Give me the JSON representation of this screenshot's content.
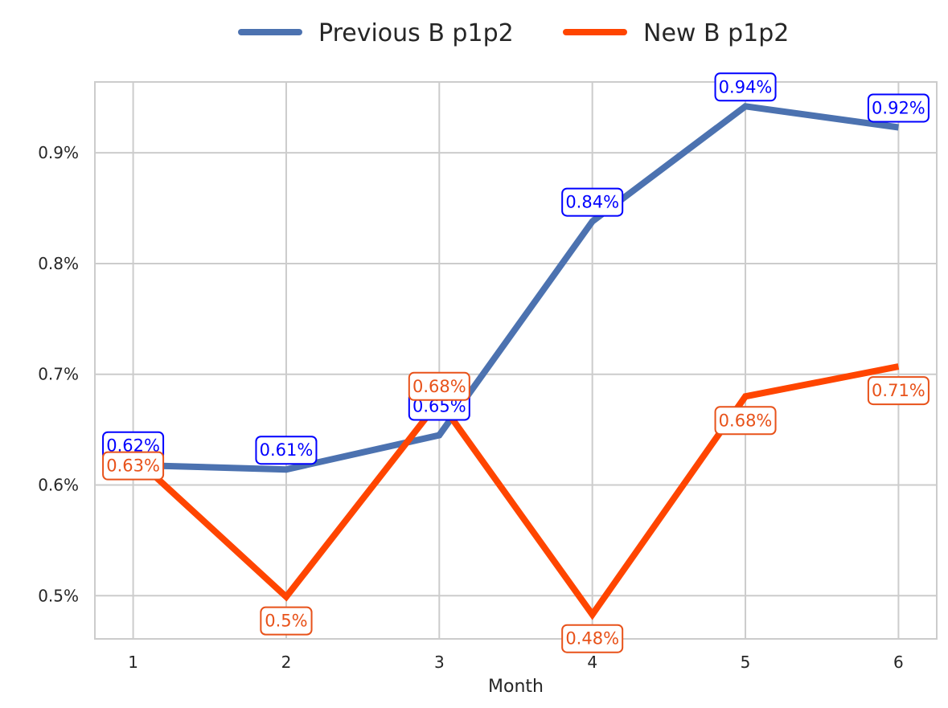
{
  "chart_data": {
    "type": "line",
    "title": "",
    "xlabel": "Month",
    "ylabel": "",
    "x": [
      1,
      2,
      3,
      4,
      5,
      6
    ],
    "x_tick_labels": [
      "1",
      "2",
      "3",
      "4",
      "5",
      "6"
    ],
    "y_tick_values": [
      0.5,
      0.6,
      0.7,
      0.8,
      0.9
    ],
    "y_tick_labels": [
      "0.5%",
      "0.6%",
      "0.7%",
      "0.8%",
      "0.9%"
    ],
    "ylim": [
      0.461,
      0.964
    ],
    "xlim": [
      0.75,
      6.25
    ],
    "grid": true,
    "legend": "top-center",
    "series": [
      {
        "name": "Previous B p1p2",
        "color": "#4c72b0",
        "label_color": "#0000ff",
        "values": [
          0.618,
          0.614,
          0.645,
          0.838,
          0.942,
          0.923
        ],
        "labels": [
          "0.62%",
          "0.61%",
          "0.65%",
          "0.84%",
          "0.94%",
          "0.92%"
        ]
      },
      {
        "name": "New B p1p2",
        "color": "#ff4500",
        "label_color": "#e8521a",
        "values": [
          0.626,
          0.499,
          0.676,
          0.483,
          0.68,
          0.707
        ],
        "labels": [
          "0.63%",
          "0.5%",
          "0.68%",
          "0.48%",
          "0.68%",
          "0.71%"
        ]
      }
    ]
  }
}
